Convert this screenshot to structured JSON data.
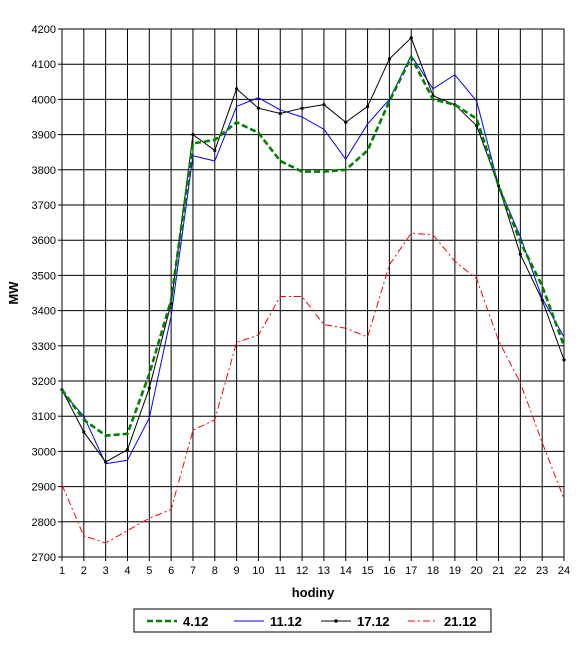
{
  "chart_data": {
    "type": "line",
    "title": "",
    "xlabel": "hodiny",
    "ylabel": "MW",
    "x": [
      1,
      2,
      3,
      4,
      5,
      6,
      7,
      8,
      9,
      10,
      11,
      12,
      13,
      14,
      15,
      16,
      17,
      18,
      19,
      20,
      21,
      22,
      23,
      24
    ],
    "ylim": [
      2700,
      4200
    ],
    "yticks": [
      2700,
      2800,
      2900,
      3000,
      3100,
      3200,
      3300,
      3400,
      3500,
      3600,
      3700,
      3800,
      3900,
      4000,
      4100,
      4200
    ],
    "grid": true,
    "legend_position": "bottom",
    "series": [
      {
        "name": "4.12",
        "color": "#008000",
        "style": "dashed-thick",
        "values": [
          3175,
          3090,
          3045,
          3050,
          3220,
          3430,
          3875,
          3885,
          3935,
          3905,
          3825,
          3795,
          3795,
          3800,
          3855,
          3995,
          4120,
          4000,
          3985,
          3945,
          3755,
          3595,
          3470,
          3300
        ]
      },
      {
        "name": "11.12",
        "color": "#0000ff",
        "style": "solid",
        "values": [
          3170,
          3100,
          2965,
          2975,
          3095,
          3385,
          3840,
          3825,
          3980,
          4005,
          3970,
          3950,
          3915,
          3830,
          3930,
          4000,
          4125,
          4030,
          4070,
          3995,
          3755,
          3610,
          3435,
          3325
        ]
      },
      {
        "name": "17.12",
        "color": "#000000",
        "style": "solid-markers",
        "values": [
          3175,
          3055,
          2970,
          3005,
          3180,
          3420,
          3900,
          3855,
          4030,
          3975,
          3960,
          3975,
          3985,
          3935,
          3980,
          4115,
          4175,
          4010,
          3985,
          3925,
          3755,
          3560,
          3430,
          3260
        ]
      },
      {
        "name": "21.12",
        "color": "#ff0000",
        "style": "dash-dot",
        "values": [
          2905,
          2760,
          2740,
          2775,
          2810,
          2835,
          3060,
          3090,
          3310,
          3330,
          3440,
          3440,
          3360,
          3350,
          3325,
          3530,
          3620,
          3615,
          3540,
          3490,
          3315,
          3195,
          3025,
          2865
        ]
      }
    ]
  }
}
